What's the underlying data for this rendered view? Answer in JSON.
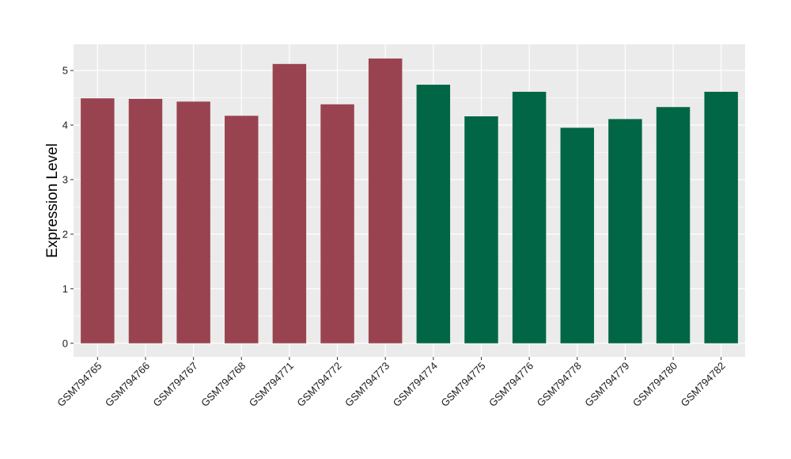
{
  "chart_data": {
    "type": "bar",
    "title": "",
    "xlabel": "",
    "ylabel": "Expression Level",
    "ylim": [
      -0.25,
      5.48
    ],
    "yticks": [
      0,
      1,
      2,
      3,
      4,
      5
    ],
    "grid": true,
    "legend": "none",
    "background_color": "#ebebeb",
    "grid_color": "#ffffff",
    "categories": [
      "GSM794765",
      "GSM794766",
      "GSM794767",
      "GSM794768",
      "GSM794771",
      "GSM794772",
      "GSM794773",
      "GSM794774",
      "GSM794775",
      "GSM794776",
      "GSM794778",
      "GSM794779",
      "GSM794780",
      "GSM794782"
    ],
    "values": [
      4.49,
      4.48,
      4.43,
      4.17,
      5.12,
      4.38,
      5.22,
      4.74,
      4.16,
      4.61,
      3.95,
      4.11,
      4.33,
      4.61
    ],
    "bar_colors": [
      "#9a4350",
      "#9a4350",
      "#9a4350",
      "#9a4350",
      "#9a4350",
      "#9a4350",
      "#9a4350",
      "#006646",
      "#006646",
      "#006646",
      "#006646",
      "#006646",
      "#006646",
      "#006646"
    ]
  }
}
